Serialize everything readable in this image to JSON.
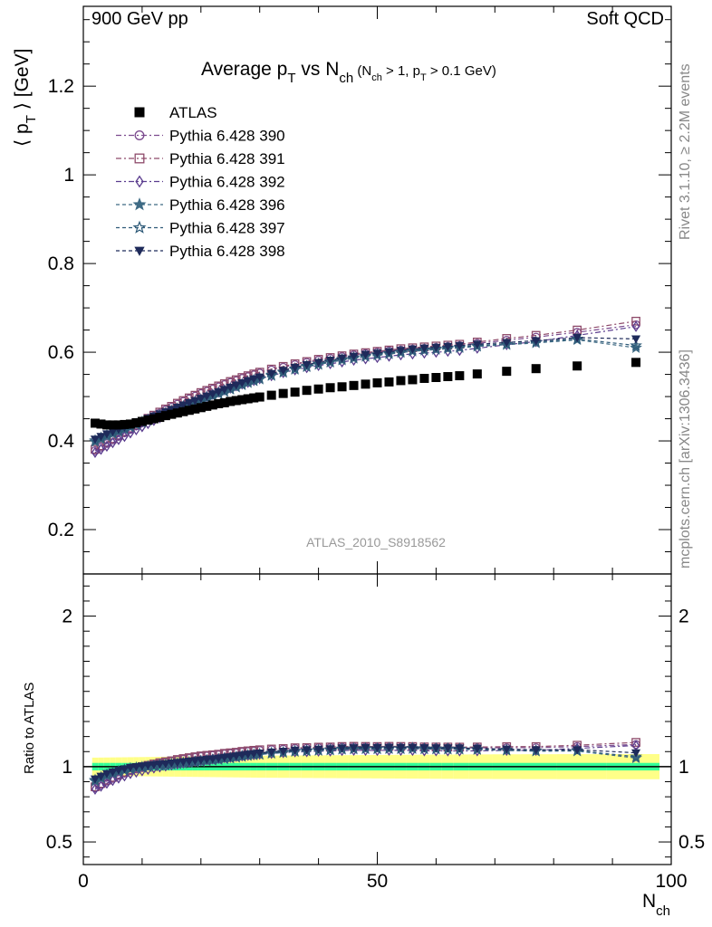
{
  "header": {
    "left": "900 GeV pp",
    "right": "Soft QCD"
  },
  "title": {
    "main": "Average p",
    "main_sub": "T",
    "mid": " vs N",
    "mid_sub": "ch",
    "cond_open": " (N",
    "cond_sub1": "ch",
    "cond_mid": " > 1, p",
    "cond_sub2": "T",
    "cond_end": " > 0.1 GeV)"
  },
  "ylabel": {
    "open": "⟨ p",
    "sub": "T",
    "close": " ⟩ [GeV]"
  },
  "ratio_ylabel": "Ratio to ATLAS",
  "xlabel": {
    "main": "N",
    "sub": "ch"
  },
  "analysis_label": "ATLAS_2010_S8918562",
  "side_text": {
    "rivet": "Rivet 3.1.10, ≥ 2.2M events",
    "mcplots": "mcplots.cern.ch [arXiv:1306.3436]"
  },
  "chart_data": [
    {
      "type": "scatter",
      "panel": "main",
      "title": "Average pT vs Nch (Nch > 1, pT > 0.1 GeV)",
      "xlabel": "Nch",
      "ylabel": "⟨ pT ⟩ [GeV]",
      "xlim": [
        0,
        100
      ],
      "ylim": [
        0.1,
        1.38
      ],
      "y_ticks": [
        "0.2",
        "0.4",
        "0.6",
        "0.8",
        "1",
        "1.2"
      ],
      "x_ticks": [
        "0",
        "50",
        "100"
      ],
      "legend_position": "top-left",
      "x": [
        2,
        3,
        4,
        5,
        6,
        7,
        8,
        9,
        10,
        11,
        12,
        13,
        14,
        15,
        16,
        17,
        18,
        19,
        20,
        21,
        22,
        23,
        24,
        25,
        26,
        27,
        28,
        29,
        30,
        32,
        34,
        36,
        38,
        40,
        42,
        44,
        46,
        48,
        50,
        52,
        54,
        56,
        58,
        60,
        62,
        64,
        67,
        72,
        77,
        84,
        94
      ],
      "series": [
        {
          "name": "ATLAS",
          "style": "black-square",
          "color": "#000000",
          "values": [
            0.44,
            0.438,
            0.436,
            0.436,
            0.436,
            0.437,
            0.438,
            0.441,
            0.444,
            0.447,
            0.45,
            0.453,
            0.457,
            0.46,
            0.463,
            0.466,
            0.469,
            0.472,
            0.475,
            0.478,
            0.481,
            0.484,
            0.486,
            0.489,
            0.491,
            0.493,
            0.495,
            0.497,
            0.499,
            0.503,
            0.507,
            0.51,
            0.514,
            0.517,
            0.52,
            0.522,
            0.525,
            0.528,
            0.531,
            0.533,
            0.536,
            0.538,
            0.541,
            0.543,
            0.545,
            0.547,
            0.551,
            0.557,
            0.563,
            0.569,
            0.577
          ]
        },
        {
          "name": "Pythia 6.428 390",
          "style": "open-circle",
          "color": "#7b4a8e",
          "values": [
            0.378,
            0.386,
            0.394,
            0.402,
            0.41,
            0.418,
            0.426,
            0.434,
            0.441,
            0.449,
            0.456,
            0.463,
            0.47,
            0.476,
            0.483,
            0.489,
            0.495,
            0.501,
            0.507,
            0.512,
            0.517,
            0.522,
            0.527,
            0.532,
            0.536,
            0.541,
            0.545,
            0.549,
            0.553,
            0.56,
            0.566,
            0.572,
            0.577,
            0.582,
            0.586,
            0.59,
            0.594,
            0.597,
            0.6,
            0.603,
            0.605,
            0.607,
            0.609,
            0.611,
            0.613,
            0.615,
            0.62,
            0.627,
            0.634,
            0.645,
            0.662
          ]
        },
        {
          "name": "Pythia 6.428 391",
          "style": "open-square",
          "color": "#8e4a6a",
          "values": [
            0.381,
            0.389,
            0.397,
            0.405,
            0.413,
            0.421,
            0.429,
            0.437,
            0.444,
            0.451,
            0.458,
            0.465,
            0.472,
            0.478,
            0.485,
            0.491,
            0.497,
            0.503,
            0.509,
            0.514,
            0.519,
            0.524,
            0.529,
            0.534,
            0.538,
            0.543,
            0.547,
            0.551,
            0.555,
            0.562,
            0.568,
            0.574,
            0.579,
            0.584,
            0.588,
            0.592,
            0.596,
            0.599,
            0.602,
            0.605,
            0.608,
            0.61,
            0.612,
            0.614,
            0.616,
            0.618,
            0.623,
            0.631,
            0.638,
            0.65,
            0.67
          ]
        },
        {
          "name": "Pythia 6.428 392",
          "style": "open-diamond",
          "color": "#5a3c8e",
          "values": [
            0.374,
            0.381,
            0.388,
            0.396,
            0.403,
            0.41,
            0.418,
            0.425,
            0.432,
            0.439,
            0.446,
            0.452,
            0.459,
            0.465,
            0.471,
            0.477,
            0.483,
            0.489,
            0.494,
            0.5,
            0.505,
            0.51,
            0.515,
            0.519,
            0.524,
            0.528,
            0.532,
            0.536,
            0.54,
            0.547,
            0.554,
            0.56,
            0.565,
            0.57,
            0.574,
            0.578,
            0.582,
            0.585,
            0.588,
            0.591,
            0.594,
            0.596,
            0.598,
            0.6,
            0.602,
            0.604,
            0.609,
            0.617,
            0.624,
            0.638,
            0.658
          ]
        },
        {
          "name": "Pythia 6.428 396",
          "style": "filled-star",
          "color": "#3e6a84",
          "values": [
            0.398,
            0.404,
            0.41,
            0.416,
            0.421,
            0.426,
            0.431,
            0.436,
            0.441,
            0.446,
            0.451,
            0.456,
            0.461,
            0.466,
            0.471,
            0.476,
            0.481,
            0.486,
            0.491,
            0.496,
            0.501,
            0.506,
            0.511,
            0.516,
            0.521,
            0.526,
            0.531,
            0.535,
            0.539,
            0.547,
            0.554,
            0.561,
            0.567,
            0.572,
            0.577,
            0.582,
            0.586,
            0.59,
            0.593,
            0.596,
            0.599,
            0.602,
            0.604,
            0.606,
            0.608,
            0.61,
            0.613,
            0.617,
            0.621,
            0.628,
            0.61
          ]
        },
        {
          "name": "Pythia 6.428 397",
          "style": "open-star",
          "color": "#2e5a78",
          "values": [
            0.401,
            0.407,
            0.413,
            0.418,
            0.423,
            0.428,
            0.433,
            0.438,
            0.443,
            0.448,
            0.453,
            0.458,
            0.463,
            0.468,
            0.473,
            0.478,
            0.483,
            0.488,
            0.493,
            0.498,
            0.503,
            0.508,
            0.513,
            0.518,
            0.523,
            0.528,
            0.533,
            0.537,
            0.541,
            0.549,
            0.556,
            0.563,
            0.569,
            0.574,
            0.579,
            0.584,
            0.588,
            0.592,
            0.595,
            0.598,
            0.601,
            0.604,
            0.606,
            0.608,
            0.61,
            0.612,
            0.615,
            0.619,
            0.623,
            0.63,
            0.615
          ]
        },
        {
          "name": "Pythia 6.428 398",
          "style": "filled-triangle-down",
          "color": "#1e2a5a",
          "values": [
            0.404,
            0.41,
            0.416,
            0.421,
            0.426,
            0.431,
            0.436,
            0.441,
            0.446,
            0.451,
            0.456,
            0.461,
            0.466,
            0.471,
            0.476,
            0.481,
            0.486,
            0.491,
            0.496,
            0.501,
            0.506,
            0.511,
            0.516,
            0.521,
            0.526,
            0.531,
            0.536,
            0.54,
            0.544,
            0.552,
            0.559,
            0.566,
            0.572,
            0.577,
            0.582,
            0.587,
            0.591,
            0.595,
            0.598,
            0.601,
            0.604,
            0.607,
            0.609,
            0.611,
            0.613,
            0.615,
            0.618,
            0.622,
            0.626,
            0.633,
            0.63
          ]
        }
      ]
    },
    {
      "type": "scatter",
      "panel": "ratio",
      "ylabel": "Ratio to ATLAS",
      "xlabel": "Nch",
      "xlim": [
        0,
        100
      ],
      "ylim": [
        0.35,
        2.28
      ],
      "y_ticks": [
        "0.5",
        "1",
        "2"
      ],
      "reference_line": 1,
      "uncertainty_band": {
        "stat_color": "#33ff99",
        "syst_color": "#ffff88",
        "stat": 0.025,
        "total": 0.06
      },
      "note": "ratio series derived as model / ATLAS for each model series"
    }
  ]
}
